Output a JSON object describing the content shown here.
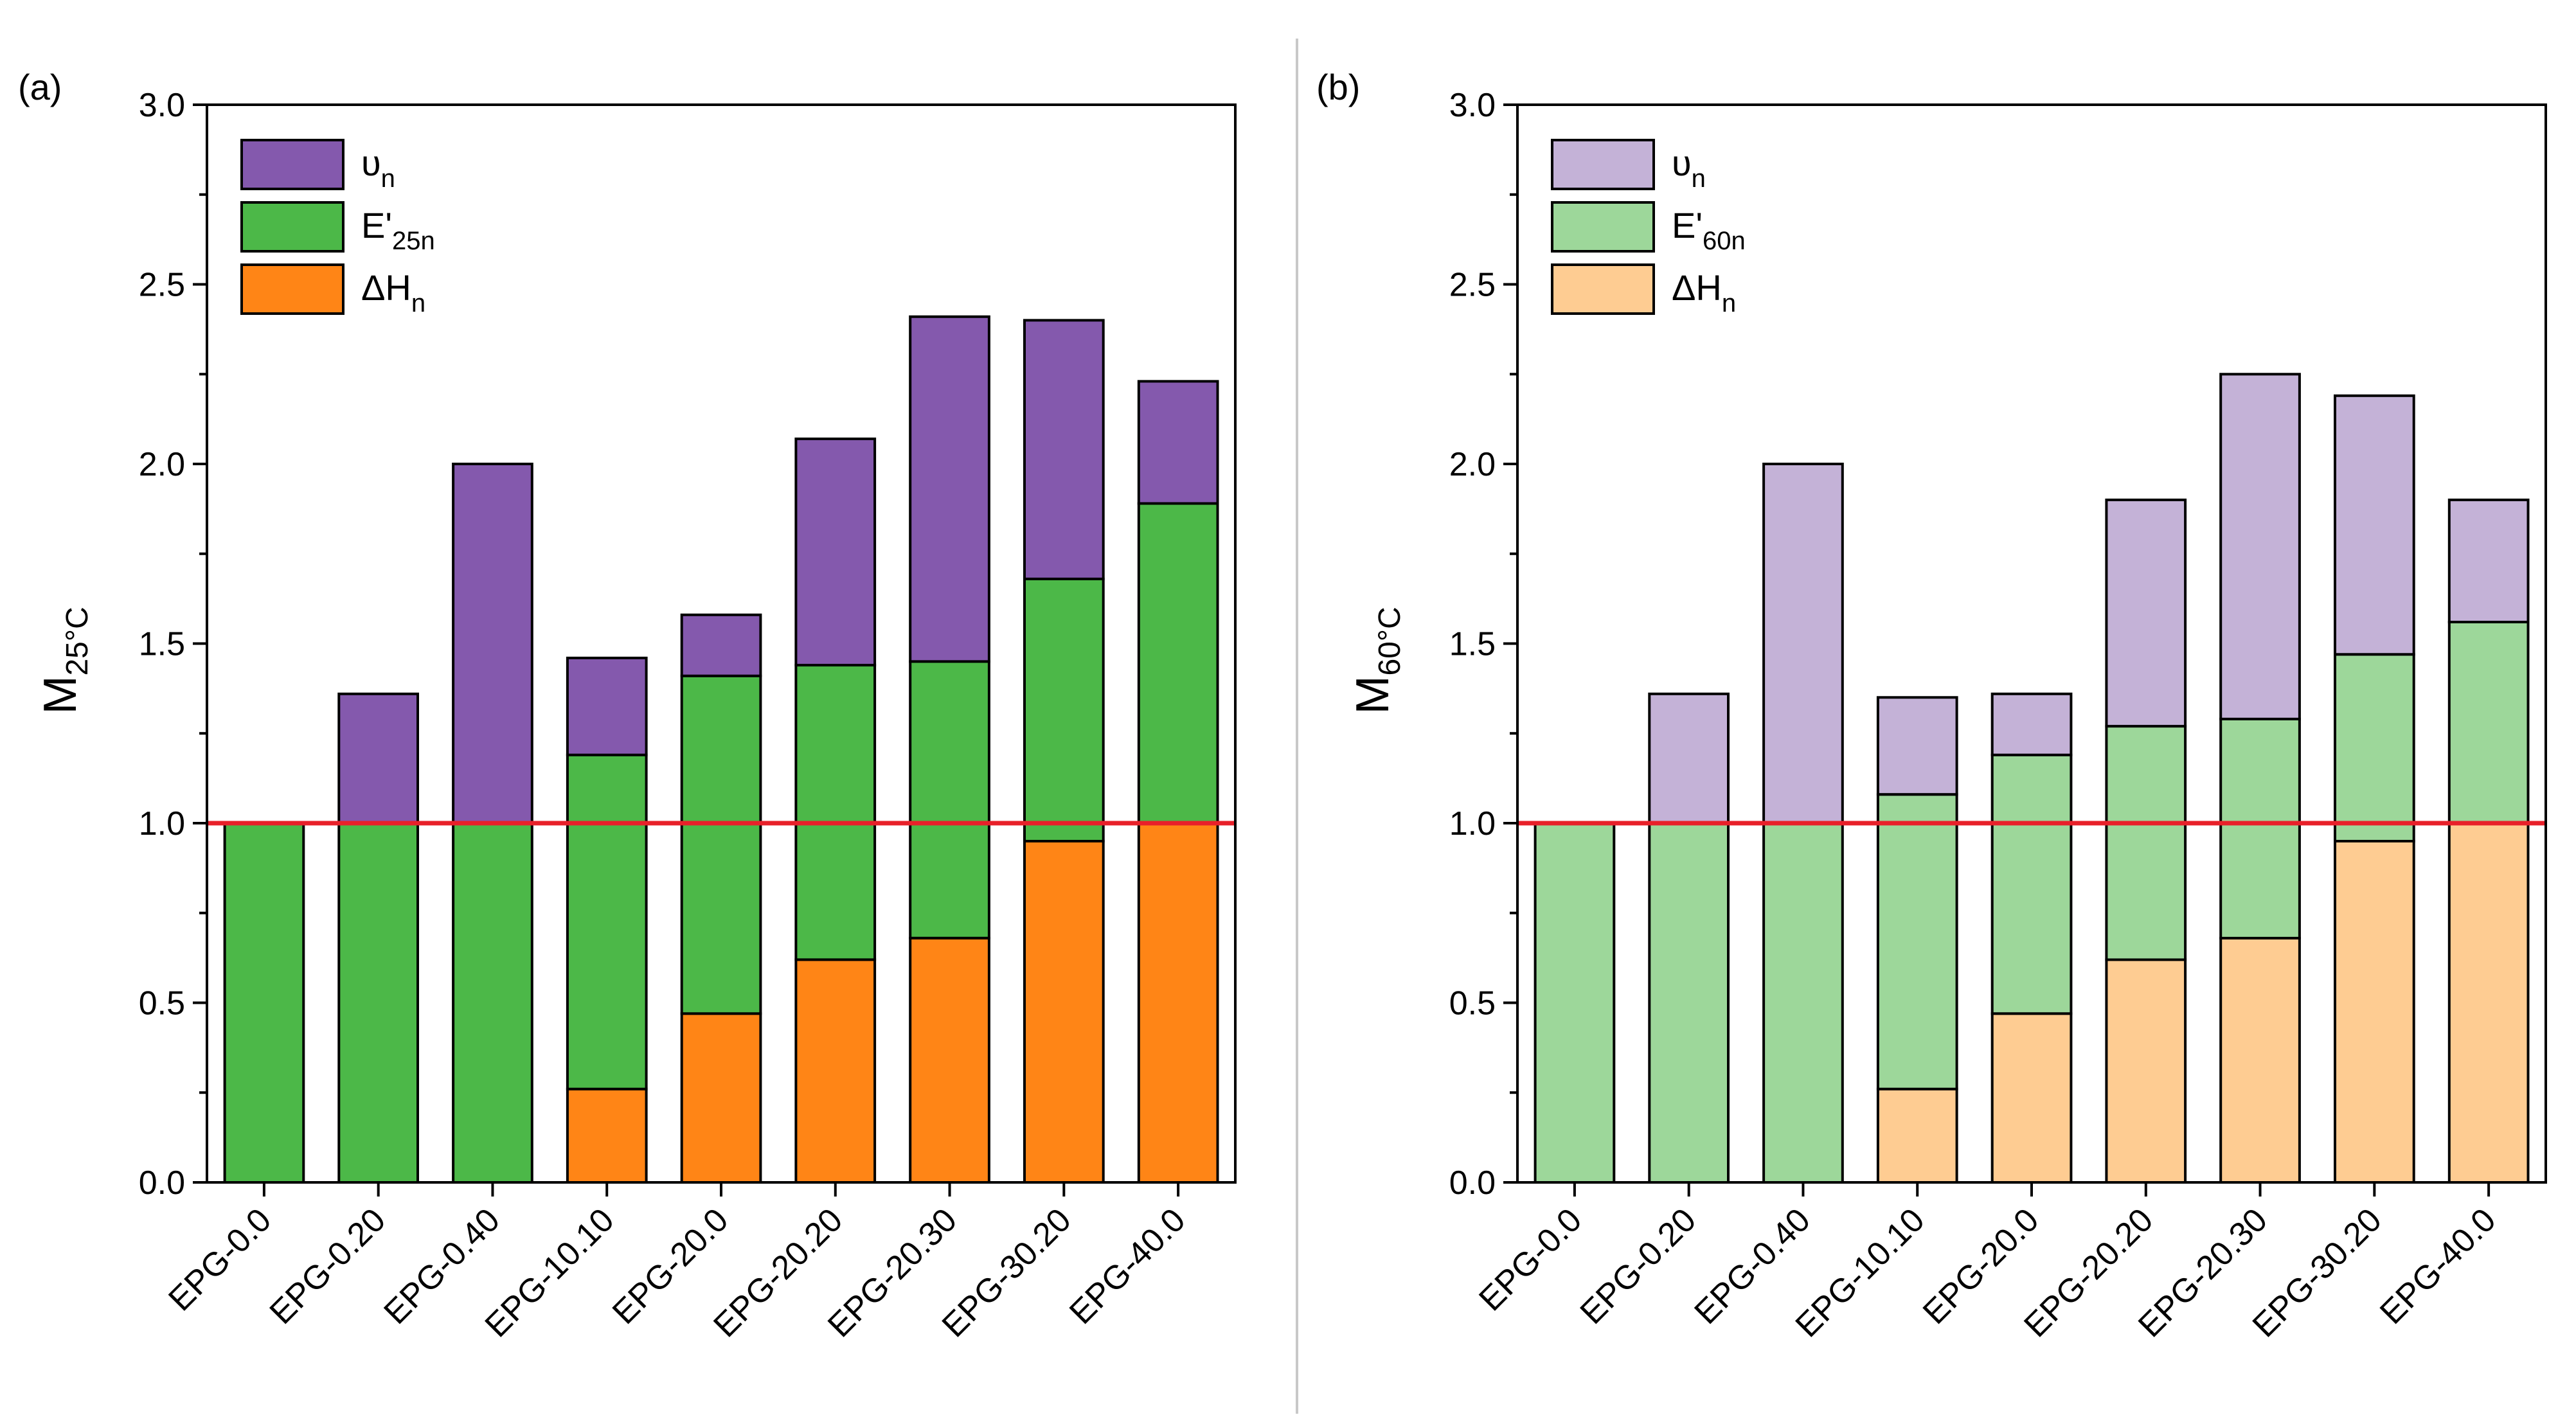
{
  "chart_data": [
    {
      "type": "bar",
      "stacked": true,
      "panel_label": "(a)",
      "ylabel": "M",
      "ylabel_sub": "25°C",
      "ylim": [
        0,
        3.0
      ],
      "yticks": [
        "0.0",
        "0.5",
        "1.0",
        "1.5",
        "2.0",
        "2.5",
        "3.0"
      ],
      "reference_line": {
        "y": 1.0,
        "color": "#e8202a"
      },
      "categories": [
        "EPG-0.0",
        "EPG-0.20",
        "EPG-0.40",
        "EPG-10.10",
        "EPG-20.0",
        "EPG-20.20",
        "EPG-20.30",
        "EPG-30.20",
        "EPG-40.0"
      ],
      "series": [
        {
          "name": "ΔH",
          "name_sub": "n",
          "color": "#ff8516",
          "values": [
            0,
            0,
            0,
            0.26,
            0.47,
            0.62,
            0.68,
            0.95,
            1.0
          ]
        },
        {
          "name": "E'",
          "name_sub": "25n",
          "color": "#4cb848",
          "values": [
            1.0,
            1.0,
            1.0,
            0.93,
            0.94,
            0.82,
            0.77,
            0.73,
            0.89
          ]
        },
        {
          "name": "υ",
          "name_sub": "n",
          "color": "#8459ad",
          "values": [
            0,
            0.36,
            1.0,
            0.27,
            0.17,
            0.63,
            0.96,
            0.72,
            0.34
          ]
        }
      ],
      "totals": [
        1.0,
        1.36,
        2.0,
        1.46,
        1.58,
        2.07,
        2.41,
        2.4,
        2.23
      ],
      "legend_order": [
        2,
        1,
        0
      ],
      "legend_position": "top-left",
      "grid": false
    },
    {
      "type": "bar",
      "stacked": true,
      "panel_label": "(b)",
      "ylabel": "M",
      "ylabel_sub": "60°C",
      "ylim": [
        0,
        3.0
      ],
      "yticks": [
        "0.0",
        "0.5",
        "1.0",
        "1.5",
        "2.0",
        "2.5",
        "3.0"
      ],
      "reference_line": {
        "y": 1.0,
        "color": "#e8202a"
      },
      "categories": [
        "EPG-0.0",
        "EPG-0.20",
        "EPG-0.40",
        "EPG-10.10",
        "EPG-20.0",
        "EPG-20.20",
        "EPG-20.30",
        "EPG-30.20",
        "EPG-40.0"
      ],
      "series": [
        {
          "name": "ΔH",
          "name_sub": "n",
          "color": "#fecc92",
          "values": [
            0,
            0,
            0,
            0.26,
            0.47,
            0.62,
            0.68,
            0.95,
            1.0
          ]
        },
        {
          "name": "E'",
          "name_sub": "60n",
          "color": "#9dd79a",
          "values": [
            1.0,
            1.0,
            1.0,
            0.82,
            0.72,
            0.65,
            0.61,
            0.52,
            0.56
          ]
        },
        {
          "name": "υ",
          "name_sub": "n",
          "color": "#c4b2d7",
          "values": [
            0,
            0.36,
            1.0,
            0.27,
            0.17,
            0.63,
            0.96,
            0.72,
            0.34
          ]
        }
      ],
      "totals": [
        1.0,
        1.36,
        2.0,
        1.35,
        1.36,
        1.9,
        2.25,
        2.19,
        1.9
      ],
      "legend_order": [
        2,
        1,
        0
      ],
      "legend_position": "top-left",
      "grid": false
    }
  ]
}
